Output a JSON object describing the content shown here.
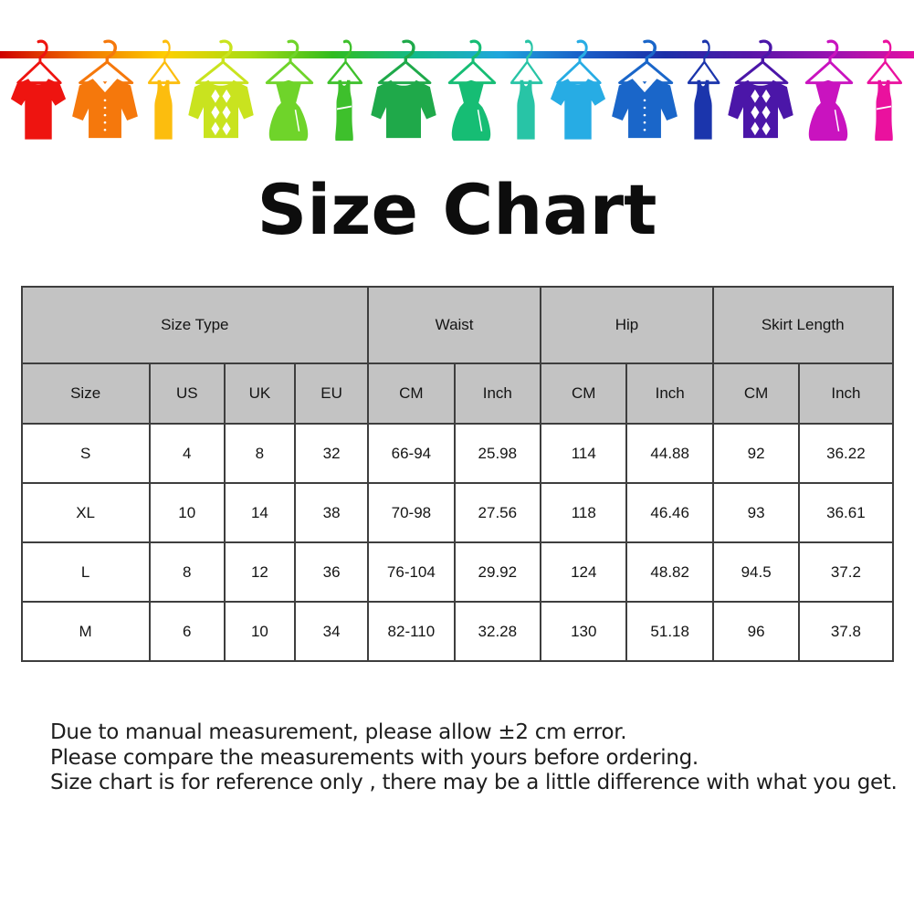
{
  "chart_data": {
    "type": "table",
    "title": "Size Chart",
    "group_headers": [
      {
        "label": "Size Type",
        "span": 4
      },
      {
        "label": "Waist",
        "span": 2
      },
      {
        "label": "Hip",
        "span": 2
      },
      {
        "label": "Skirt Length",
        "span": 2
      }
    ],
    "columns": [
      "Size",
      "US",
      "UK",
      "EU",
      "CM",
      "Inch",
      "CM",
      "Inch",
      "CM",
      "Inch"
    ],
    "rows": [
      [
        "S",
        "4",
        "8",
        "32",
        "66-94",
        "25.98",
        "114",
        "44.88",
        "92",
        "36.22"
      ],
      [
        "XL",
        "10",
        "14",
        "38",
        "70-98",
        "27.56",
        "118",
        "46.46",
        "93",
        "36.61"
      ],
      [
        "L",
        "8",
        "12",
        "36",
        "76-104",
        "29.92",
        "124",
        "48.82",
        "94.5",
        "37.2"
      ],
      [
        "M",
        "6",
        "10",
        "34",
        "82-110",
        "32.28",
        "130",
        "51.18",
        "96",
        "37.8"
      ]
    ],
    "header_bg": "#c3c3c3",
    "border_color": "#3e3e3e"
  },
  "banner": {
    "rail_colors": [
      "#cf0000",
      "#f07300",
      "#fdd000",
      "#a8dc12",
      "#30bc1e",
      "#13ba8c",
      "#1fa6dc",
      "#1a5fc8",
      "#1b2fa8",
      "#5515a8",
      "#9912b0",
      "#e210a2"
    ],
    "items": [
      {
        "type": "tshirt",
        "name": "red-tshirt",
        "color": "#ee1410"
      },
      {
        "type": "shirt",
        "name": "orange-shirt",
        "color": "#f5780c"
      },
      {
        "type": "tank",
        "name": "amber-tank-top",
        "color": "#fcbd0e"
      },
      {
        "type": "argyle-sweater",
        "name": "yellow-green-argyle-sweater",
        "color": "#c9e31f"
      },
      {
        "type": "dress",
        "name": "green-dress",
        "color": "#6fd42a"
      },
      {
        "type": "tank-dress",
        "name": "green-tank-dress",
        "color": "#3ec02c"
      },
      {
        "type": "longsleeve",
        "name": "green-longsleeve-top",
        "color": "#1fa94a"
      },
      {
        "type": "dress",
        "name": "emerald-dress",
        "color": "#16bd74"
      },
      {
        "type": "tank",
        "name": "teal-tank-top",
        "color": "#28c4a6"
      },
      {
        "type": "tshirt",
        "name": "cyan-tshirt",
        "color": "#27ace4"
      },
      {
        "type": "shirt",
        "name": "blue-shirt",
        "color": "#1a66c9"
      },
      {
        "type": "tank",
        "name": "navy-tank-top",
        "color": "#1b35ac"
      },
      {
        "type": "argyle-sweater",
        "name": "purple-argyle-sweater",
        "color": "#4b16a8"
      },
      {
        "type": "dress",
        "name": "magenta-dress",
        "color": "#c913bf"
      },
      {
        "type": "tank-dress",
        "name": "pink-tank-dress",
        "color": "#ea119e"
      }
    ]
  },
  "notes": [
    "Due to manual measurement, please allow ±2 cm error.",
    "Please compare the measurements with yours before ordering.",
    "Size chart is for reference only , there may be a little difference with what you get."
  ]
}
